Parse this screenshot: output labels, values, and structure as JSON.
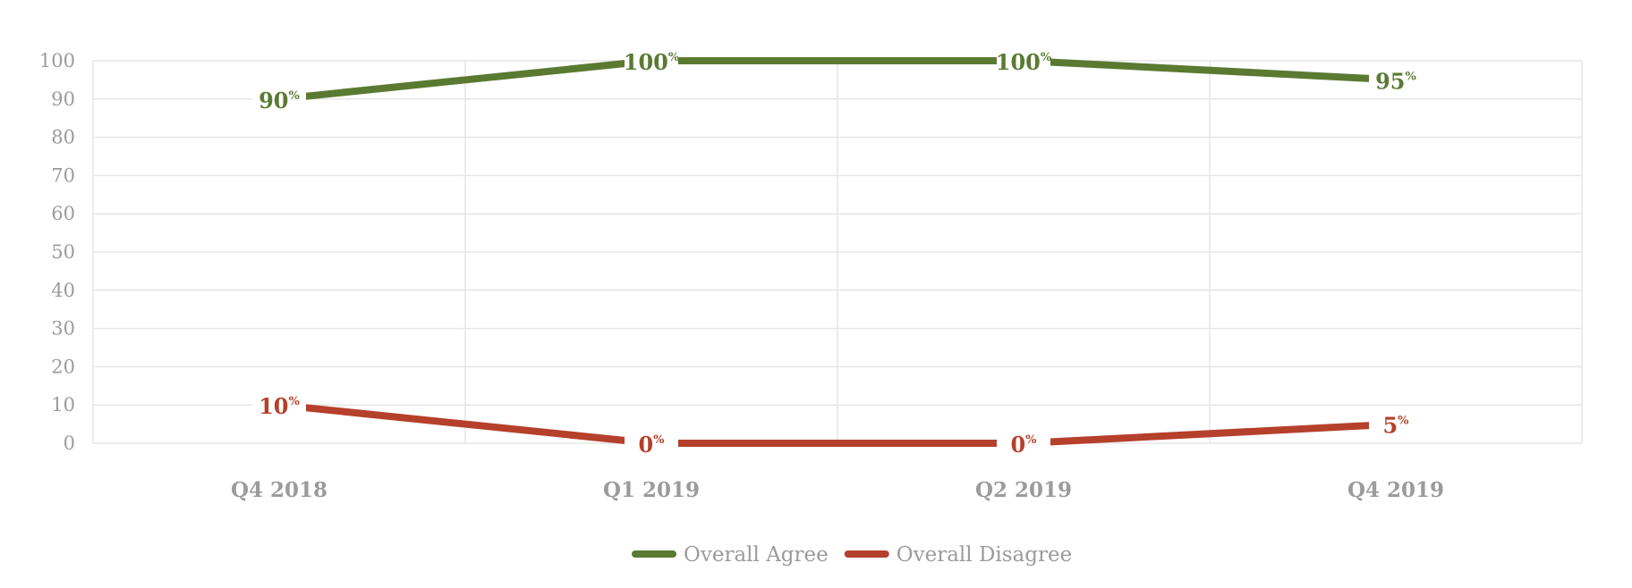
{
  "chart_data": {
    "type": "line",
    "categories": [
      "Q4 2018",
      "Q1 2019",
      "Q2 2019",
      "Q4 2019"
    ],
    "ylim": [
      0,
      100
    ],
    "yticks": [
      0,
      10,
      20,
      30,
      40,
      50,
      60,
      70,
      80,
      90,
      100
    ],
    "grid": true,
    "legend": "bottom",
    "series": [
      {
        "name": "Overall Agree",
        "color": "#5a7a32",
        "values": [
          90,
          100,
          100,
          95
        ],
        "labels": [
          "90",
          "100",
          "100",
          "95"
        ]
      },
      {
        "name": "Overall Disagree",
        "color": "#b5402b",
        "values": [
          10,
          0,
          0,
          5
        ],
        "labels": [
          "10",
          "0",
          "0",
          "5"
        ]
      }
    ],
    "label_suffix": "%"
  }
}
